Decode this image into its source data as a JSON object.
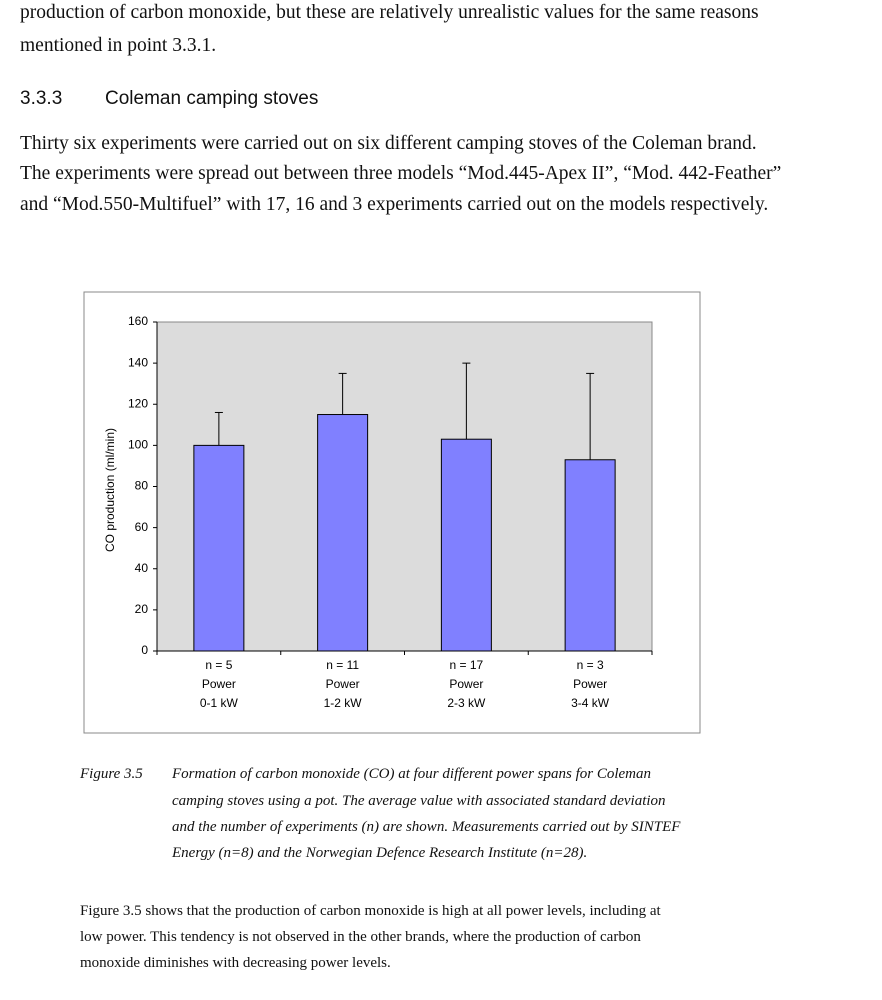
{
  "intro_lines": [
    "production of carbon monoxide, but these are relatively unrealistic values for the same reasons",
    "mentioned in point 3.3.1."
  ],
  "section": {
    "number": "3.3.3",
    "title": "Coleman camping stoves"
  },
  "paragraph_lines": [
    "Thirty six experiments were carried out on six different camping stoves of the Coleman brand.",
    "The experiments were spread out between three models “Mod.445-Apex II”, “Mod. 442-Feather”",
    "and “Mod.550-Multifuel” with 17, 16 and 3 experiments carried out on the models respectively."
  ],
  "chart_data": {
    "type": "bar",
    "y_label": "CO production (ml/min)",
    "categories": [
      [
        "n = 5",
        "Power",
        "0-1 kW"
      ],
      [
        "n = 11",
        "Power",
        "1-2 kW"
      ],
      [
        "n = 17",
        "Power",
        "2-3 kW"
      ],
      [
        "n = 3",
        "Power",
        "3-4 kW"
      ]
    ],
    "values": [
      100,
      115,
      103,
      93
    ],
    "errors": [
      16,
      20,
      37,
      42
    ],
    "color": "#8080ff",
    "ylim": [
      0,
      160
    ],
    "yticks": [
      0,
      20,
      40,
      60,
      80,
      100,
      120,
      140,
      160
    ]
  },
  "caption": {
    "label": "Figure 3.5",
    "lines": [
      "Formation of carbon monoxide (CO) at four different power spans for Coleman",
      "camping stoves using a pot. The average value with associated standard deviation",
      "and the number of experiments (n) are shown. Measurements carried out by SINTEF",
      "Energy (n=8) and the Norwegian Defence Research Institute (n=28)."
    ]
  },
  "closing_lines": [
    "Figure 3.5 shows that the production of carbon monoxide is high at all power levels, including at",
    "low power. This tendency is not observed in the other brands, where the production of carbon",
    "monoxide diminishes with decreasing power levels."
  ]
}
